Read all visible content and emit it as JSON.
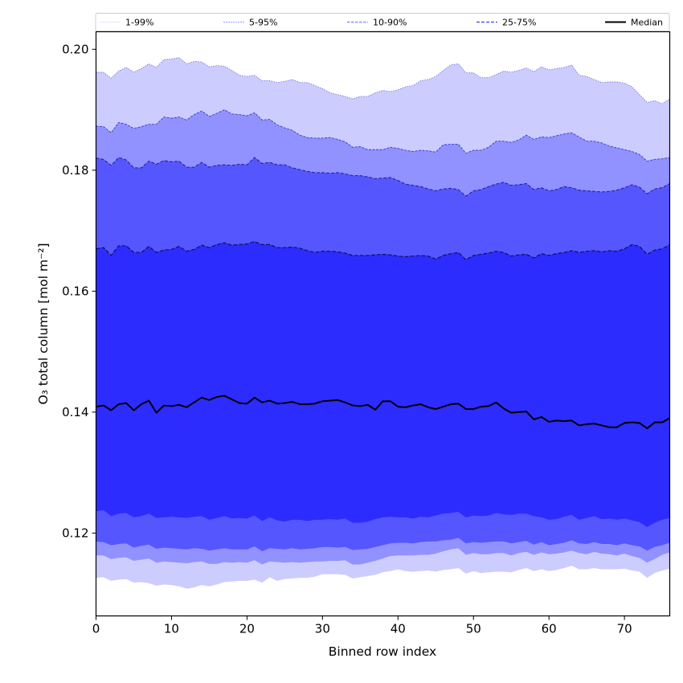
{
  "chart_data": {
    "type": "area",
    "title": "",
    "xlabel": "Binned row index",
    "ylabel": "O₃ total column [mol m⁻²]",
    "xlim": [
      0,
      76
    ],
    "ylim": [
      0.1063,
      0.2029
    ],
    "x_ticks": [
      0,
      10,
      20,
      30,
      40,
      50,
      60,
      70
    ],
    "x_tick_labels": [
      "0",
      "10",
      "20",
      "30",
      "40",
      "50",
      "60",
      "70"
    ],
    "y_ticks": [
      0.12,
      0.14,
      0.16,
      0.18,
      0.2
    ],
    "y_tick_labels": [
      "0.12",
      "0.14",
      "0.16",
      "0.18",
      "0.20"
    ],
    "grid": false,
    "legend_placement": "top (above plot, single row)",
    "legend": [
      {
        "label": "1-99%",
        "style": "dotted",
        "color": "#ccccff"
      },
      {
        "label": "5-95%",
        "style": "dashed",
        "color": "#9999ff"
      },
      {
        "label": "10-90%",
        "style": "dashed",
        "color": "#8080ff"
      },
      {
        "label": "25-75%",
        "style": "dashed",
        "color": "#5555ff"
      },
      {
        "label": "Median",
        "style": "solid",
        "color": "#000000"
      }
    ],
    "bands": [
      {
        "name": "1-99%",
        "fill": "#ccccff",
        "line": "#6b6be0",
        "lower": "p1",
        "upper": "p99"
      },
      {
        "name": "5-95%",
        "fill": "#9191ff",
        "line": "#3a3acc",
        "lower": "p5",
        "upper": "p95"
      },
      {
        "name": "10-90%",
        "fill": "#5656ff",
        "line": "#1c1c9c",
        "lower": "p10",
        "upper": "p90"
      },
      {
        "name": "25-75%",
        "fill": "#2c2cff",
        "line": "#101060",
        "lower": "p25",
        "upper": "p75"
      }
    ],
    "x": [
      0,
      1,
      2,
      3,
      4,
      5,
      6,
      7,
      8,
      9,
      10,
      11,
      12,
      13,
      14,
      15,
      16,
      17,
      18,
      19,
      20,
      21,
      22,
      23,
      24,
      25,
      26,
      27,
      28,
      29,
      30,
      31,
      32,
      33,
      34,
      35,
      36,
      37,
      38,
      39,
      40,
      41,
      42,
      43,
      44,
      45,
      46,
      47,
      48,
      49,
      50,
      51,
      52,
      53,
      54,
      55,
      56,
      57,
      58,
      59,
      60,
      61,
      62,
      63,
      64,
      65,
      66,
      67,
      68,
      69,
      70,
      71,
      72,
      73,
      74,
      75,
      76
    ],
    "series": [
      {
        "name": "p99",
        "values": [
          0.1962,
          0.1962,
          0.1952,
          0.1964,
          0.197,
          0.1962,
          0.1968,
          0.1976,
          0.197,
          0.1983,
          0.1984,
          0.1986,
          0.1976,
          0.198,
          0.1979,
          0.1971,
          0.1973,
          0.1972,
          0.1965,
          0.1957,
          0.1955,
          0.1957,
          0.1948,
          0.1948,
          0.1945,
          0.1947,
          0.195,
          0.1945,
          0.1945,
          0.194,
          0.1935,
          0.1928,
          0.1925,
          0.1922,
          0.1918,
          0.1922,
          0.1922,
          0.1928,
          0.1932,
          0.193,
          0.1933,
          0.1938,
          0.194,
          0.1948,
          0.195,
          0.1955,
          0.1965,
          0.1974,
          0.1976,
          0.1961,
          0.1961,
          0.1953,
          0.1953,
          0.1958,
          0.1964,
          0.1962,
          0.1965,
          0.1969,
          0.1963,
          0.1971,
          0.1966,
          0.1968,
          0.197,
          0.1974,
          0.1957,
          0.1955,
          0.195,
          0.1945,
          0.1946,
          0.1946,
          0.1944,
          0.1938,
          0.1925,
          0.1912,
          0.1915,
          0.191,
          0.1918
        ]
      },
      {
        "name": "p95",
        "values": [
          0.1873,
          0.1872,
          0.1862,
          0.1879,
          0.1876,
          0.1869,
          0.1872,
          0.1876,
          0.1876,
          0.1888,
          0.1886,
          0.1888,
          0.1883,
          0.1892,
          0.1898,
          0.1889,
          0.1894,
          0.19,
          0.1893,
          0.1892,
          0.189,
          0.1895,
          0.1883,
          0.1884,
          0.1875,
          0.187,
          0.1866,
          0.1858,
          0.1854,
          0.1853,
          0.1853,
          0.1854,
          0.1851,
          0.1847,
          0.1838,
          0.1839,
          0.1834,
          0.1834,
          0.1834,
          0.1838,
          0.1836,
          0.1833,
          0.1831,
          0.1833,
          0.1832,
          0.183,
          0.1842,
          0.1843,
          0.1843,
          0.1828,
          0.1833,
          0.1833,
          0.1838,
          0.1848,
          0.1848,
          0.1846,
          0.185,
          0.1858,
          0.1851,
          0.1855,
          0.1854,
          0.1857,
          0.186,
          0.1862,
          0.1855,
          0.1848,
          0.1848,
          0.1845,
          0.184,
          0.1837,
          0.1834,
          0.1831,
          0.1826,
          0.1815,
          0.1818,
          0.1819,
          0.1821
        ]
      },
      {
        "name": "p90",
        "values": [
          0.182,
          0.1818,
          0.1808,
          0.1821,
          0.1817,
          0.1804,
          0.1804,
          0.1815,
          0.181,
          0.1816,
          0.1814,
          0.1815,
          0.1805,
          0.1805,
          0.1813,
          0.1805,
          0.1808,
          0.1809,
          0.1808,
          0.181,
          0.1809,
          0.1821,
          0.1811,
          0.1813,
          0.1809,
          0.1809,
          0.1804,
          0.1801,
          0.1798,
          0.1796,
          0.1796,
          0.1795,
          0.1796,
          0.1794,
          0.1791,
          0.1791,
          0.1789,
          0.1786,
          0.1787,
          0.1788,
          0.1783,
          0.1777,
          0.1775,
          0.1773,
          0.1769,
          0.1766,
          0.1769,
          0.177,
          0.1768,
          0.1757,
          0.1766,
          0.1768,
          0.1773,
          0.1777,
          0.178,
          0.1775,
          0.1776,
          0.1778,
          0.1768,
          0.1771,
          0.1766,
          0.1768,
          0.1773,
          0.1771,
          0.1767,
          0.1766,
          0.1765,
          0.1764,
          0.1765,
          0.1767,
          0.1771,
          0.1776,
          0.1772,
          0.1761,
          0.1769,
          0.1771,
          0.1778
        ]
      },
      {
        "name": "p75",
        "values": [
          0.167,
          0.1672,
          0.1659,
          0.1675,
          0.1675,
          0.1664,
          0.1664,
          0.1674,
          0.1664,
          0.1668,
          0.1669,
          0.1674,
          0.1666,
          0.1669,
          0.1676,
          0.1672,
          0.1677,
          0.168,
          0.1676,
          0.1677,
          0.1678,
          0.1682,
          0.1677,
          0.1677,
          0.1672,
          0.1672,
          0.1673,
          0.1671,
          0.1667,
          0.1664,
          0.1666,
          0.1666,
          0.1665,
          0.1663,
          0.1659,
          0.1659,
          0.1659,
          0.166,
          0.1661,
          0.166,
          0.1658,
          0.1657,
          0.1658,
          0.1659,
          0.1658,
          0.1653,
          0.1659,
          0.1662,
          0.1664,
          0.1652,
          0.1659,
          0.1661,
          0.1663,
          0.1666,
          0.1664,
          0.1658,
          0.166,
          0.1661,
          0.1655,
          0.1662,
          0.1659,
          0.1662,
          0.1664,
          0.1667,
          0.1664,
          0.1666,
          0.1667,
          0.1665,
          0.1667,
          0.1666,
          0.167,
          0.1677,
          0.1674,
          0.1661,
          0.1668,
          0.167,
          0.1677
        ]
      },
      {
        "name": "median",
        "values": [
          0.1409,
          0.1411,
          0.1403,
          0.1413,
          0.1415,
          0.1403,
          0.1413,
          0.1419,
          0.1399,
          0.1411,
          0.141,
          0.1412,
          0.1408,
          0.1416,
          0.1424,
          0.142,
          0.1425,
          0.1427,
          0.1421,
          0.1415,
          0.1414,
          0.1424,
          0.1416,
          0.1419,
          0.1414,
          0.1415,
          0.1417,
          0.1413,
          0.1413,
          0.1414,
          0.1418,
          0.1419,
          0.142,
          0.1416,
          0.1411,
          0.141,
          0.1412,
          0.1404,
          0.1418,
          0.1418,
          0.1409,
          0.1408,
          0.1411,
          0.1413,
          0.1408,
          0.1405,
          0.1409,
          0.1413,
          0.1414,
          0.1405,
          0.1405,
          0.1409,
          0.141,
          0.1416,
          0.1406,
          0.1399,
          0.14,
          0.1401,
          0.1388,
          0.1392,
          0.1384,
          0.1386,
          0.1385,
          0.1386,
          0.1378,
          0.138,
          0.1381,
          0.1378,
          0.1375,
          0.1375,
          0.1382,
          0.1383,
          0.1382,
          0.1373,
          0.1383,
          0.1383,
          0.139
        ]
      },
      {
        "name": "p25",
        "values": [
          0.1236,
          0.1238,
          0.1228,
          0.1232,
          0.1233,
          0.1226,
          0.1228,
          0.1232,
          0.1225,
          0.1226,
          0.1227,
          0.1226,
          0.1225,
          0.1227,
          0.1228,
          0.1222,
          0.1225,
          0.1228,
          0.1224,
          0.1225,
          0.1224,
          0.1229,
          0.122,
          0.1226,
          0.1221,
          0.1219,
          0.1222,
          0.1222,
          0.122,
          0.1222,
          0.1222,
          0.1223,
          0.1222,
          0.1224,
          0.1217,
          0.1217,
          0.1219,
          0.1223,
          0.1226,
          0.1227,
          0.1226,
          0.1226,
          0.1224,
          0.1227,
          0.1226,
          0.1229,
          0.1232,
          0.1233,
          0.1235,
          0.1226,
          0.1229,
          0.1228,
          0.1229,
          0.1233,
          0.1231,
          0.123,
          0.1232,
          0.1232,
          0.1228,
          0.1226,
          0.1222,
          0.1223,
          0.1227,
          0.123,
          0.1222,
          0.1225,
          0.1228,
          0.1223,
          0.1224,
          0.1222,
          0.1224,
          0.1221,
          0.1218,
          0.121,
          0.1217,
          0.1222,
          0.1225
        ]
      },
      {
        "name": "p10",
        "values": [
          0.1186,
          0.1185,
          0.118,
          0.1182,
          0.1183,
          0.1176,
          0.1179,
          0.1181,
          0.1174,
          0.1176,
          0.1175,
          0.1174,
          0.1173,
          0.1175,
          0.1174,
          0.1171,
          0.1173,
          0.1175,
          0.1173,
          0.1173,
          0.1173,
          0.1178,
          0.117,
          0.1175,
          0.1174,
          0.1173,
          0.1175,
          0.1173,
          0.1174,
          0.1175,
          0.1177,
          0.1177,
          0.1176,
          0.1177,
          0.1172,
          0.1173,
          0.1174,
          0.1177,
          0.118,
          0.1183,
          0.1184,
          0.1184,
          0.1183,
          0.1185,
          0.1186,
          0.1186,
          0.1188,
          0.1189,
          0.1192,
          0.1183,
          0.1185,
          0.1184,
          0.1185,
          0.1186,
          0.1186,
          0.1183,
          0.1185,
          0.1187,
          0.1181,
          0.1185,
          0.118,
          0.1182,
          0.1184,
          0.1188,
          0.1183,
          0.1182,
          0.1185,
          0.1182,
          0.1182,
          0.118,
          0.1183,
          0.118,
          0.1178,
          0.1171,
          0.1177,
          0.118,
          0.1184
        ]
      },
      {
        "name": "p5",
        "values": [
          0.1163,
          0.1163,
          0.1157,
          0.1159,
          0.116,
          0.1154,
          0.1156,
          0.1158,
          0.1151,
          0.1153,
          0.1152,
          0.1151,
          0.115,
          0.1152,
          0.1153,
          0.1149,
          0.1149,
          0.1152,
          0.1151,
          0.1152,
          0.1151,
          0.1155,
          0.1148,
          0.1153,
          0.1152,
          0.1151,
          0.1152,
          0.1151,
          0.1152,
          0.1153,
          0.1153,
          0.1154,
          0.1154,
          0.1155,
          0.1148,
          0.1148,
          0.1151,
          0.1154,
          0.1158,
          0.1162,
          0.1163,
          0.1163,
          0.1163,
          0.1164,
          0.1164,
          0.1166,
          0.117,
          0.1173,
          0.1175,
          0.1164,
          0.1167,
          0.1165,
          0.1165,
          0.1167,
          0.1167,
          0.1163,
          0.1167,
          0.1169,
          0.1164,
          0.1168,
          0.1165,
          0.1166,
          0.1168,
          0.1171,
          0.1167,
          0.1165,
          0.1169,
          0.1166,
          0.1165,
          0.1163,
          0.1166,
          0.1162,
          0.1159,
          0.1151,
          0.1157,
          0.1164,
          0.1168
        ]
      },
      {
        "name": "p1",
        "values": [
          0.1126,
          0.1127,
          0.1121,
          0.1123,
          0.1124,
          0.1118,
          0.1119,
          0.1117,
          0.1113,
          0.1115,
          0.1114,
          0.1112,
          0.1108,
          0.111,
          0.1114,
          0.1112,
          0.1115,
          0.1119,
          0.112,
          0.1121,
          0.1121,
          0.1123,
          0.1118,
          0.1127,
          0.1121,
          0.1124,
          0.1125,
          0.1126,
          0.1126,
          0.1128,
          0.1132,
          0.1132,
          0.1132,
          0.1131,
          0.1125,
          0.1127,
          0.1129,
          0.1131,
          0.1135,
          0.1137,
          0.114,
          0.1137,
          0.1136,
          0.1137,
          0.1138,
          0.1136,
          0.1139,
          0.114,
          0.1142,
          0.1133,
          0.1137,
          0.1134,
          0.1135,
          0.1136,
          0.1136,
          0.1135,
          0.1139,
          0.1142,
          0.1137,
          0.114,
          0.1137,
          0.1139,
          0.1142,
          0.1146,
          0.114,
          0.114,
          0.1142,
          0.114,
          0.114,
          0.114,
          0.1141,
          0.1138,
          0.1136,
          0.1126,
          0.1134,
          0.1138,
          0.1141
        ]
      }
    ]
  }
}
